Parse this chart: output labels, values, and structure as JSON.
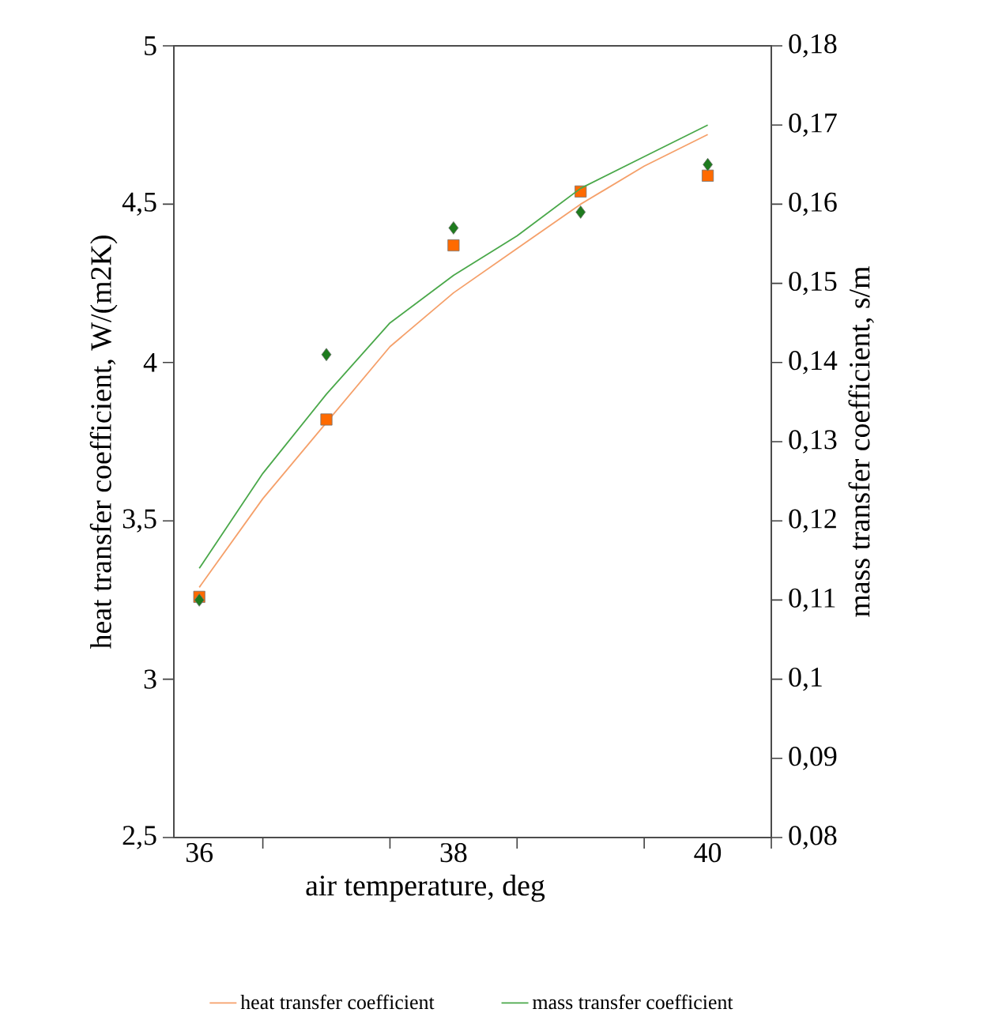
{
  "chart_data": {
    "type": "scatter",
    "xlabel": "air temperature, deg",
    "ylabel": "heat transfer coefficient, W/(m2K)",
    "y2label": "mass transfer coefficient, s/m",
    "xlim": [
      35.8,
      40.5
    ],
    "xticks": [
      36,
      {
        "value": 36.5,
        "label": null
      },
      {
        "value": 37.5,
        "label": null
      },
      38,
      {
        "value": 38.5,
        "label": null
      },
      {
        "value": 39.5,
        "label": null
      },
      40,
      {
        "value": 40.5,
        "label": null
      }
    ],
    "ylim": [
      2.5,
      5
    ],
    "yticks": [
      {
        "value": 2.5,
        "label": "2,5"
      },
      3,
      {
        "value": 3.5,
        "label": "3,5"
      },
      4,
      {
        "value": 4.5,
        "label": "4,5"
      },
      5
    ],
    "y2lim": [
      0.08,
      0.18
    ],
    "y2ticks": [
      {
        "value": 0.08,
        "label": "0,08"
      },
      {
        "value": 0.09,
        "label": "0,09"
      },
      {
        "value": 0.1,
        "label": "0,1"
      },
      {
        "value": 0.11,
        "label": "0,11"
      },
      {
        "value": 0.12,
        "label": "0,12"
      },
      {
        "value": 0.13,
        "label": "0,13"
      },
      {
        "value": 0.14,
        "label": "0,14"
      },
      {
        "value": 0.15,
        "label": "0,15"
      },
      {
        "value": 0.16,
        "label": "0,16"
      },
      {
        "value": 0.17,
        "label": "0,17"
      },
      {
        "value": 0.18,
        "label": "0,18"
      }
    ],
    "legend": "bottom",
    "series": [
      {
        "marker": "square",
        "color": "#ff6a00",
        "x": [
          36,
          37,
          38,
          39,
          40
        ],
        "values": [
          3.26,
          3.82,
          4.37,
          4.54,
          4.59
        ]
      },
      {
        "marker": "diamond",
        "color": "#1e7b1e",
        "axis": "y2",
        "x": [
          36,
          37,
          38,
          39,
          40
        ],
        "values": [
          0.11,
          0.141,
          0.157,
          0.159,
          0.165
        ]
      },
      {
        "type": "line",
        "name": "heat transfer coefficient",
        "color": "#f5a06a",
        "x": [
          36,
          36.5,
          37,
          37.5,
          38,
          38.5,
          39,
          39.5,
          40
        ],
        "values": [
          3.29,
          3.57,
          3.81,
          4.05,
          4.22,
          4.36,
          4.5,
          4.62,
          4.72
        ]
      },
      {
        "type": "line",
        "name": "mass transfer coefficient",
        "color": "#4aa84a",
        "axis": "y2",
        "x": [
          36,
          36.5,
          37,
          37.5,
          38,
          38.5,
          39,
          39.5,
          40
        ],
        "values": [
          0.114,
          0.126,
          0.136,
          0.145,
          0.151,
          0.156,
          0.162,
          0.166,
          0.17
        ]
      }
    ]
  }
}
